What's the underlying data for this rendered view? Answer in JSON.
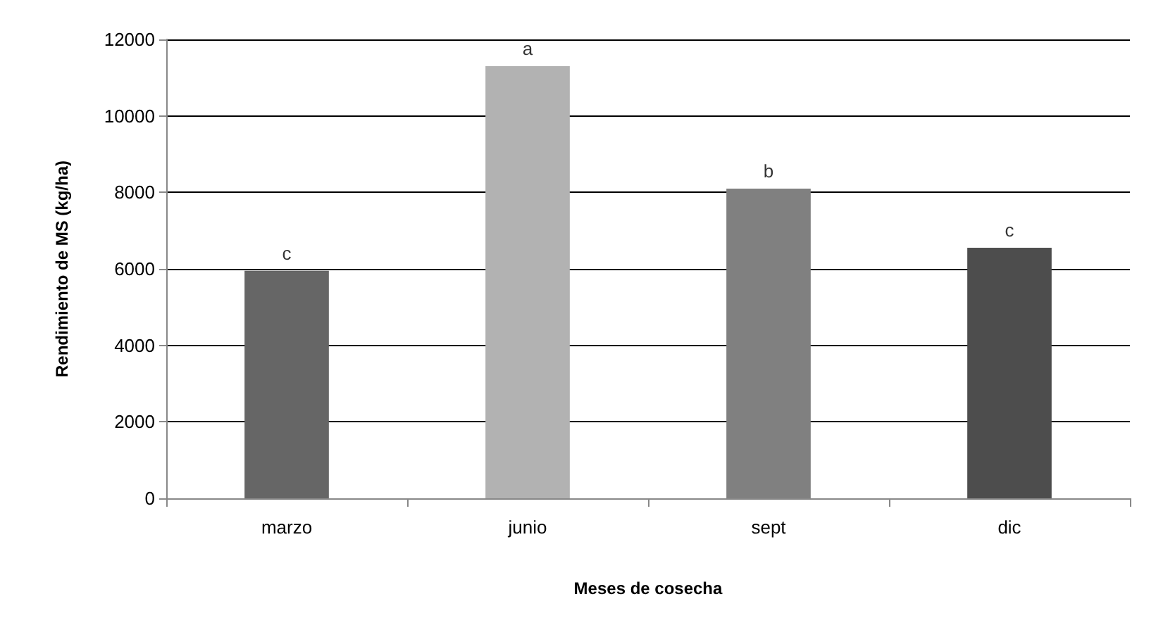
{
  "chart_data": {
    "type": "bar",
    "xlabel": "Meses de cosecha",
    "ylabel": "Rendimiento de MS (kg/ha)",
    "categories": [
      "marzo",
      "junio",
      "sept",
      "dic"
    ],
    "values": [
      5950,
      11300,
      8100,
      6550
    ],
    "colors": [
      "#666666",
      "#b2b2b2",
      "#808080",
      "#4d4d4d"
    ],
    "ylim": [
      0,
      12000
    ],
    "yticks": [
      0,
      2000,
      4000,
      6000,
      8000,
      10000,
      12000
    ],
    "grid": "y",
    "annotations": [
      {
        "text": "c",
        "x": "marzo",
        "y": 5950
      },
      {
        "text": "a",
        "x": "junio",
        "y": 11300
      },
      {
        "text": "b",
        "x": "sept",
        "y": 8100
      },
      {
        "text": "c",
        "x": "dic",
        "y": 6550
      }
    ]
  }
}
